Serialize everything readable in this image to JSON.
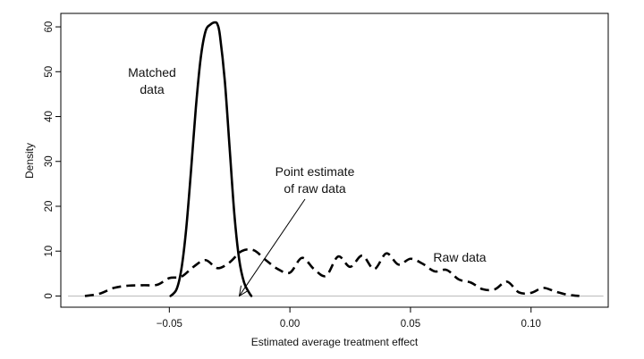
{
  "chart_data": {
    "type": "line",
    "title": "",
    "xlabel": "Estimated average treatment effect",
    "ylabel": "Density",
    "xlim": [
      -0.095,
      0.132
    ],
    "ylim": [
      -2.5,
      63
    ],
    "x_ticks": [
      -0.05,
      0.0,
      0.05,
      0.1
    ],
    "x_tick_labels": [
      "−0.05",
      "0.00",
      "0.05",
      "0.10"
    ],
    "y_ticks": [
      0,
      10,
      20,
      30,
      40,
      50,
      60
    ],
    "y_tick_labels": [
      "0",
      "10",
      "20",
      "30",
      "40",
      "50",
      "60"
    ],
    "baseline": 0,
    "grid": false,
    "series": [
      {
        "name": "Matched data",
        "style": "solid",
        "color": "#000000",
        "x": [
          -0.0495,
          -0.047,
          -0.045,
          -0.043,
          -0.041,
          -0.039,
          -0.037,
          -0.035,
          -0.033,
          -0.031,
          -0.03,
          -0.029,
          -0.027,
          -0.025,
          -0.023,
          -0.021,
          -0.019,
          -0.017,
          -0.016
        ],
        "y": [
          0,
          1.5,
          6,
          15,
          28,
          42,
          53,
          59,
          60.5,
          61,
          60.5,
          58,
          48,
          33,
          18,
          8,
          3,
          0.8,
          0
        ]
      },
      {
        "name": "Raw data",
        "style": "dashed",
        "color": "#000000",
        "x": [
          -0.085,
          -0.079,
          -0.073,
          -0.067,
          -0.061,
          -0.055,
          -0.05,
          -0.045,
          -0.04,
          -0.035,
          -0.03,
          -0.025,
          -0.02,
          -0.015,
          -0.01,
          -0.005,
          0.0,
          0.005,
          0.01,
          0.015,
          0.02,
          0.025,
          0.03,
          0.035,
          0.04,
          0.045,
          0.05,
          0.055,
          0.06,
          0.065,
          0.07,
          0.075,
          0.08,
          0.085,
          0.09,
          0.095,
          0.1,
          0.105,
          0.11,
          0.115,
          0.12
        ],
        "y": [
          0,
          0.5,
          1.8,
          2.3,
          2.4,
          2.5,
          4.0,
          4.3,
          6.5,
          8.0,
          6.2,
          7.5,
          10.0,
          10.2,
          8.0,
          6.0,
          5.2,
          8.5,
          6.0,
          4.5,
          8.8,
          6.5,
          9.0,
          6.0,
          9.5,
          7.0,
          8.3,
          7.2,
          5.5,
          5.8,
          3.7,
          3.0,
          1.5,
          1.5,
          3.2,
          0.8,
          0.7,
          1.8,
          1.0,
          0.3,
          0
        ]
      }
    ],
    "annotations": [
      {
        "lines": [
          "Matched",
          "data"
        ],
        "series": "Matched data"
      },
      {
        "lines": [
          "Point estimate",
          "of raw data"
        ],
        "arrow_to": {
          "x": -0.021,
          "y": 0
        }
      },
      {
        "lines": [
          "Raw data"
        ],
        "series": "Raw data"
      }
    ]
  }
}
